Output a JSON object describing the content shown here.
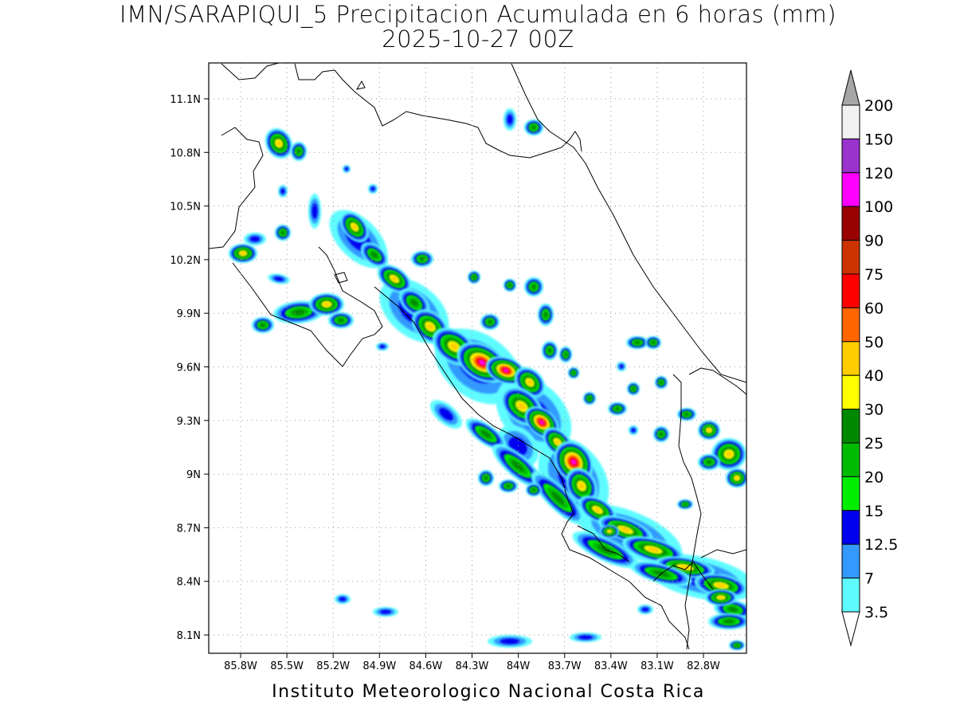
{
  "title": {
    "line1": "IMN/SARAPIQUI_5 Precipitacion Acumulada en 6 horas (mm)",
    "line2": "2025-10-27 00Z"
  },
  "credit": "Instituto Meteorologico Nacional Costa Rica",
  "map": {
    "lon_range": [
      -86.0,
      -82.57
    ],
    "lat_range": [
      8.0,
      11.2
    ],
    "lat_ticks": [
      "11.1N",
      "10.8N",
      "10.5N",
      "10.2N",
      "9.9N",
      "9.6N",
      "9.3N",
      "9N",
      "8.7N",
      "8.4N",
      "8.1N"
    ],
    "lon_ticks": [
      "85.8W",
      "85.5W",
      "85.2W",
      "84.9W",
      "84.6W",
      "84.3W",
      "84W",
      "83.7W",
      "83.4W",
      "83.1W",
      "82.8W"
    ],
    "grid": "dotted"
  },
  "colorbar": {
    "levels": [
      "3.5",
      "7",
      "12.5",
      "15",
      "20",
      "25",
      "30",
      "40",
      "50",
      "60",
      "75",
      "90",
      "100",
      "120",
      "150",
      "200"
    ],
    "colors": [
      "#ffffff",
      "#5ffcff",
      "#3399ff",
      "#0000ee",
      "#00ee00",
      "#00bb00",
      "#008800",
      "#ffff00",
      "#ffcc00",
      "#ff6600",
      "#ff0000",
      "#cc3300",
      "#990000",
      "#ff00ff",
      "#9933cc",
      "#f2f2f2",
      "#a6a6a6"
    ]
  }
}
